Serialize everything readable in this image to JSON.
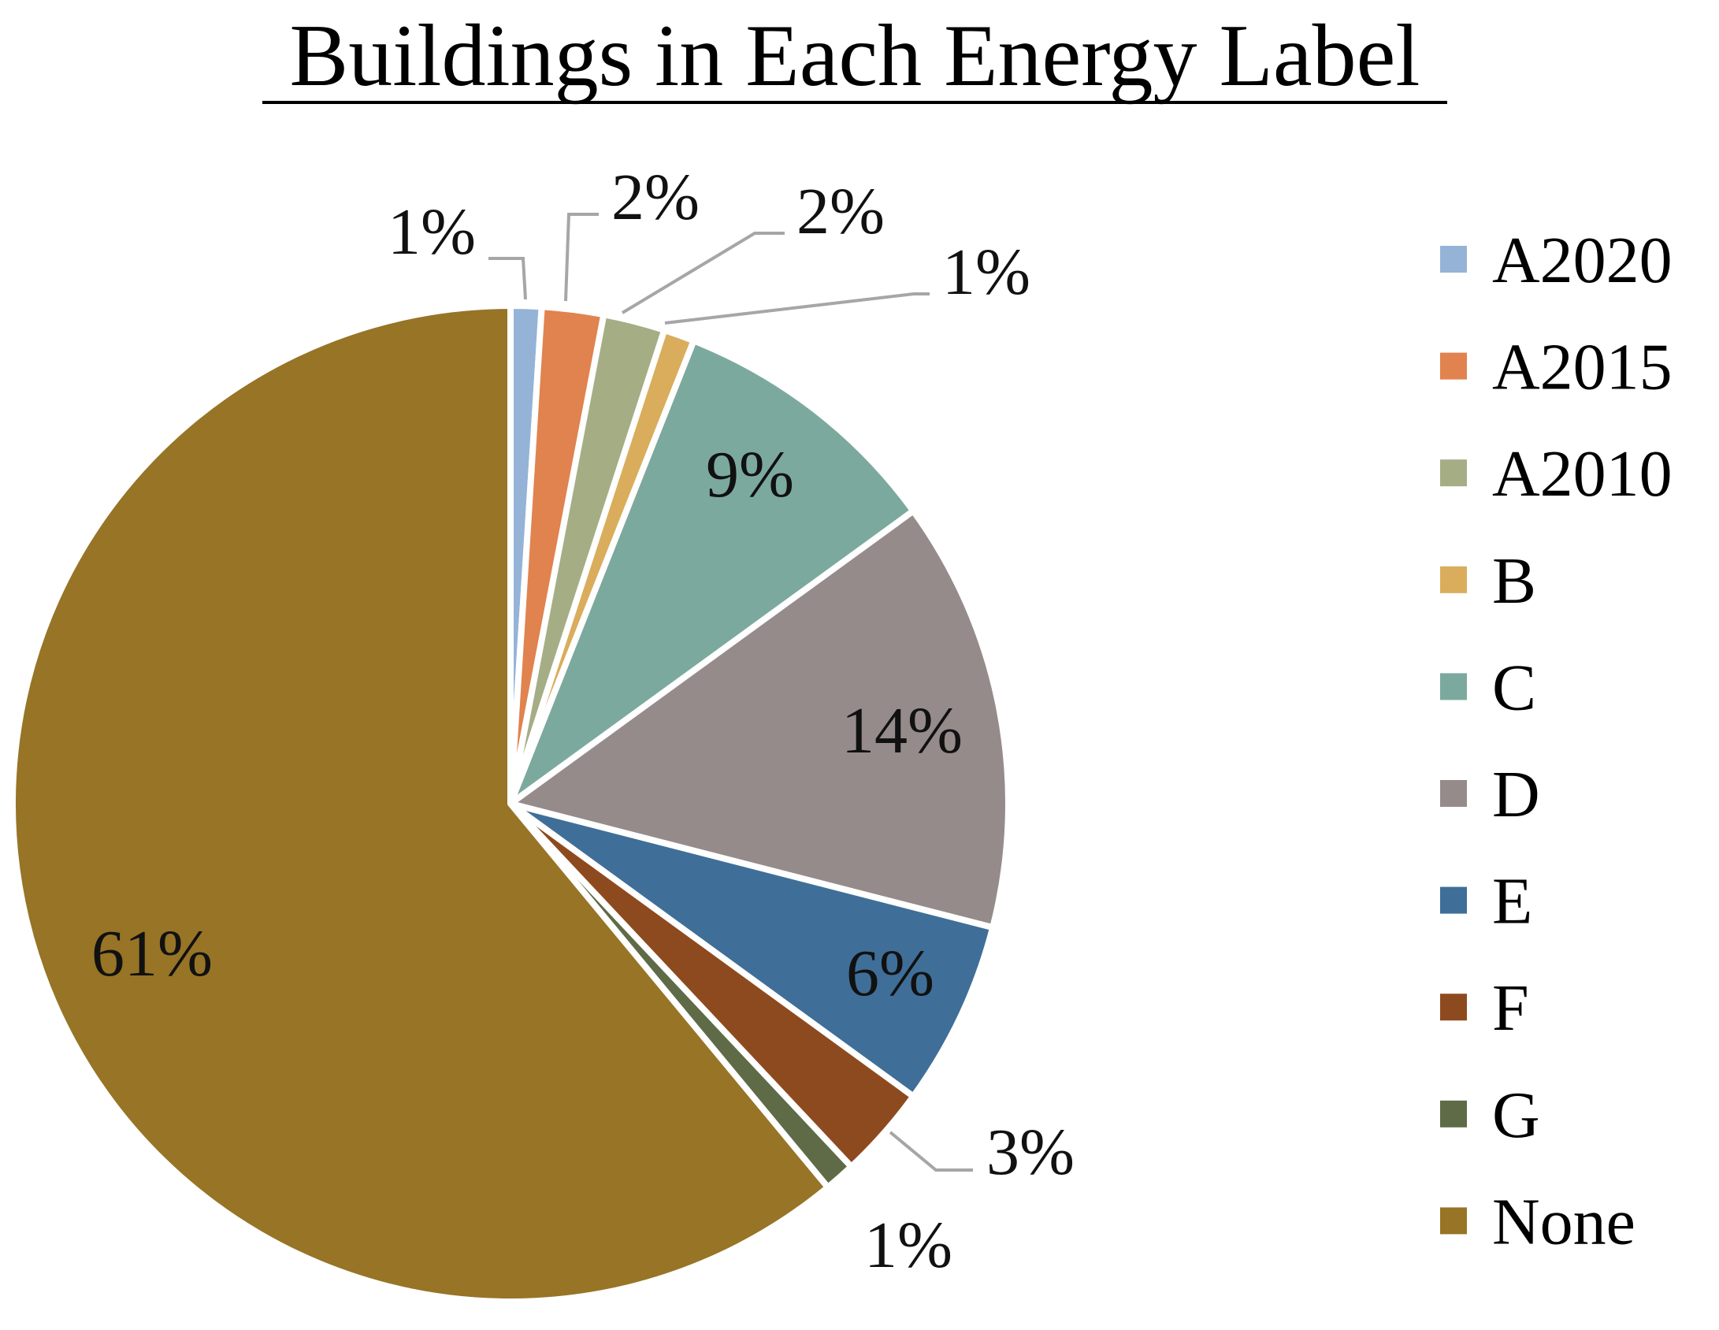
{
  "chart_data": {
    "type": "pie",
    "title": "Buildings in Each Energy Label",
    "legend_position": "right",
    "slices": [
      {
        "label": "A2020",
        "value": 1,
        "display": "1%",
        "color": "#95b3d7"
      },
      {
        "label": "A2015",
        "value": 2,
        "display": "2%",
        "color": "#e0834f"
      },
      {
        "label": "A2010",
        "value": 2,
        "display": "2%",
        "color": "#a5ad85"
      },
      {
        "label": "B",
        "value": 1,
        "display": "1%",
        "color": "#d9ad5c"
      },
      {
        "label": "C",
        "value": 9,
        "display": "9%",
        "color": "#7ca99d"
      },
      {
        "label": "D",
        "value": 14,
        "display": "14%",
        "color": "#968b8b"
      },
      {
        "label": "E",
        "value": 6,
        "display": "6%",
        "color": "#3f6f98"
      },
      {
        "label": "F",
        "value": 3,
        "display": "3%",
        "color": "#8e4a1f"
      },
      {
        "label": "G",
        "value": 1,
        "display": "1%",
        "color": "#5f6b47"
      },
      {
        "label": "None",
        "value": 61,
        "display": "61%",
        "color": "#977426"
      }
    ]
  }
}
